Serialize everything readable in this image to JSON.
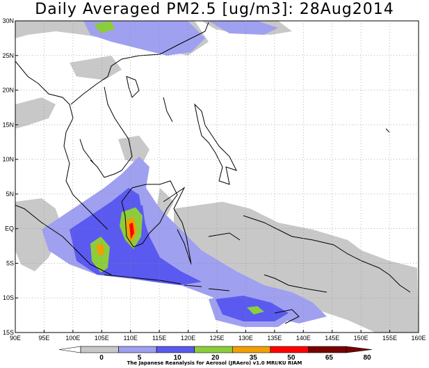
{
  "title": "Daily Averaged PM2.5 [ug/m3]: 28Aug2014",
  "map": {
    "lon_labels": [
      "90E",
      "95E",
      "100E",
      "105E",
      "110E",
      "115E",
      "120E",
      "125E",
      "130E",
      "135E",
      "140E",
      "145E",
      "150E",
      "155E",
      "160E"
    ],
    "lat_labels": [
      "30N",
      "25N",
      "20N",
      "15N",
      "10N",
      "5N",
      "EQ",
      "5S",
      "10S",
      "15S"
    ]
  },
  "colorbar": {
    "levels": [
      "0",
      "5",
      "10",
      "20",
      "35",
      "50",
      "65",
      "80"
    ],
    "colors": [
      "#ffffff",
      "#c8c8c8",
      "#a0a0f0",
      "#5a5af0",
      "#8ccd3c",
      "#f0a000",
      "#ff0000",
      "#780000"
    ]
  },
  "credit": "The Japanese Reanalysis for Aerosol (JRAero) v1.0 MRI/KU RIAM"
}
